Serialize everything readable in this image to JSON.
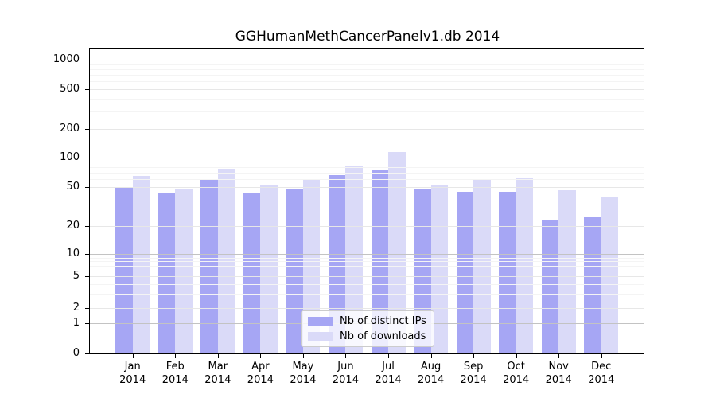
{
  "chart_data": {
    "type": "bar",
    "title": "GGHumanMethCancerPanelv1.db 2014",
    "scale": "log",
    "grid": true,
    "legend_position": "bottom-center",
    "categories": [
      "Jan",
      "Feb",
      "Mar",
      "Apr",
      "May",
      "Jun",
      "Jul",
      "Aug",
      "Sep",
      "Oct",
      "Nov",
      "Dec"
    ],
    "year": "2014",
    "series": [
      {
        "name": "Nb of distinct IPs",
        "color": "#a6a6f4",
        "values": [
          50,
          43,
          60,
          43,
          47,
          66,
          75,
          48,
          45,
          45,
          23,
          25
        ]
      },
      {
        "name": "Nb of downloads",
        "color": "#dadaf8",
        "values": [
          65,
          48,
          76,
          52,
          60,
          82,
          113,
          52,
          60,
          62,
          46,
          39
        ]
      }
    ],
    "y_ticks": [
      0,
      1,
      2,
      5,
      10,
      20,
      50,
      100,
      200,
      500,
      1000
    ],
    "ylim": [
      0,
      1300
    ]
  },
  "colors": {
    "decade_gridline": "#c3c3c3",
    "major_gridline": "#e7e7e7",
    "minor_gridline": "#f4f4f4",
    "axis": "#000000",
    "legend_border": "#cccccc"
  }
}
